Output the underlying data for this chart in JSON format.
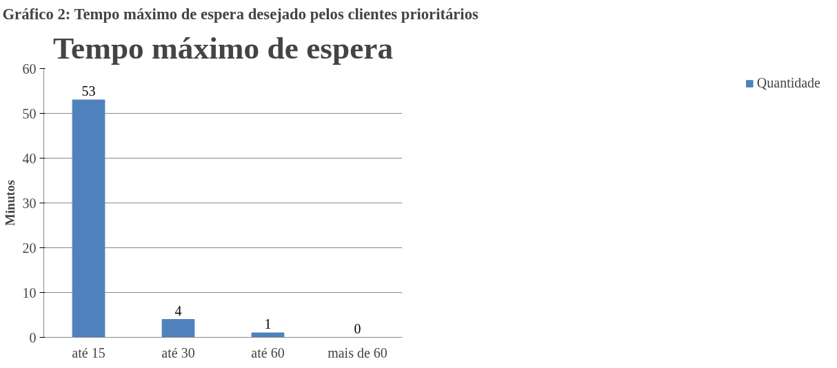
{
  "chart_data": {
    "type": "bar",
    "title": "Tempo máximo de espera",
    "ylabel": "Minutos",
    "annotations": [
      "Gráfico 2: Tempo máximo de espera desejado pelos clientes prioritários"
    ],
    "categories": [
      "até 15",
      "até 30",
      "até 60",
      "mais de 60"
    ],
    "series": [
      {
        "name": "Quantidade",
        "color": "#4f81bd",
        "values": [
          53,
          4,
          1,
          0
        ]
      }
    ],
    "ylim": [
      0,
      60
    ],
    "yticks": [
      0,
      10,
      20,
      30,
      40,
      50,
      60
    ],
    "grid": "y",
    "legend": "right",
    "data_labels": true
  }
}
